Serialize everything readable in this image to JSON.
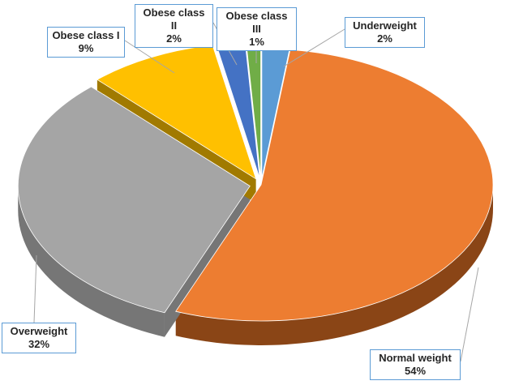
{
  "chart_data": {
    "type": "pie",
    "title": "",
    "slices": [
      {
        "label": "Underweight",
        "value": 2,
        "display": "2%",
        "color": "#5b9bd5",
        "side_color": "#3f6f99"
      },
      {
        "label": "Normal weight",
        "value": 54,
        "display": "54%",
        "color": "#ed7d31",
        "side_color": "#8a4516"
      },
      {
        "label": "Overweight",
        "value": 32,
        "display": "32%",
        "color": "#a5a5a5",
        "side_color": "#767676"
      },
      {
        "label": "Obese class I",
        "value": 9,
        "display": "9%",
        "color": "#ffc000",
        "side_color": "#a17a00"
      },
      {
        "label": "Obese class II",
        "value": 2,
        "display": "2%",
        "color": "#4472c4",
        "side_color": "#2c4c86"
      },
      {
        "label": "Obese class III",
        "value": 1,
        "display": "1%",
        "color": "#70ad47",
        "side_color": "#4b7630"
      }
    ],
    "legend": "none",
    "style": "3d-exploded"
  }
}
